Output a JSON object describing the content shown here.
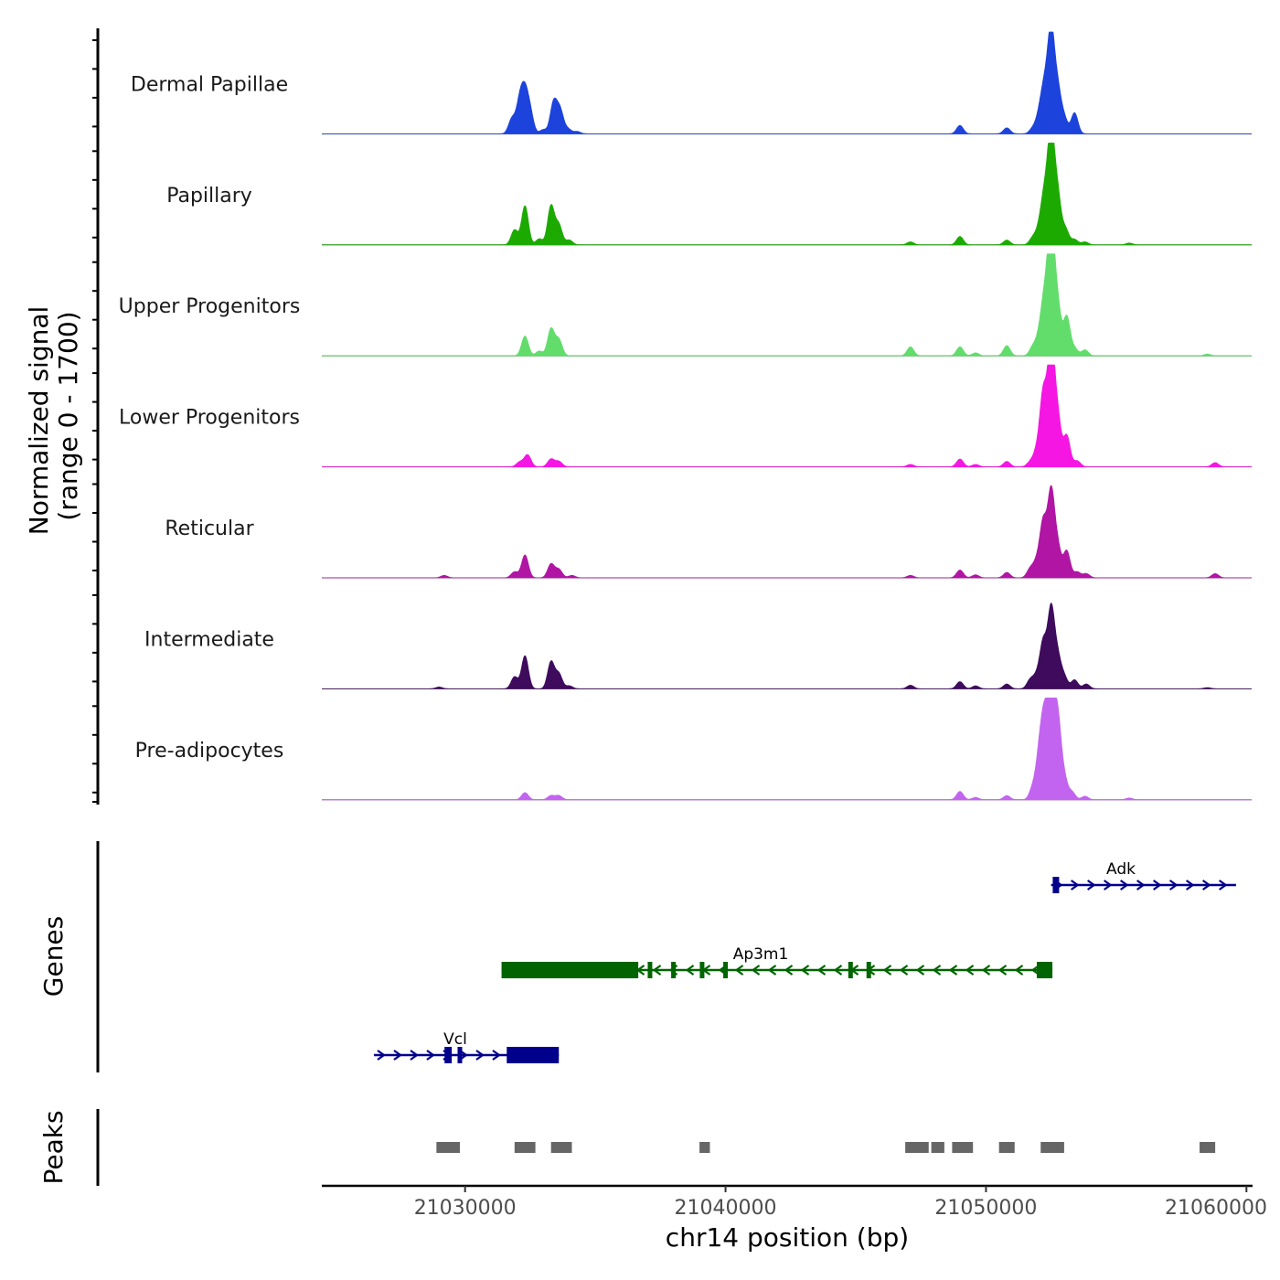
{
  "chart_data": {
    "type": "area",
    "description_kind": "genome coverage tracks",
    "y_title_line1": "Normalized signal",
    "y_title_line2": "(range 0 - 1700)",
    "y_range": [
      0,
      1700
    ],
    "x_title": "chr14 position (bp)",
    "x_range": [
      21024500,
      21060200
    ],
    "x_ticks": [
      21030000,
      21040000,
      21050000,
      21060000
    ],
    "x_tick_labels": [
      "21030000",
      "21040000",
      "21050000",
      "21060000"
    ],
    "tracks": [
      {
        "name": "Dermal Papillae",
        "color": "#1C43DB",
        "peaks": [
          [
            21031800,
            250
          ],
          [
            21032100,
            520
          ],
          [
            21032300,
            600
          ],
          [
            21032500,
            330
          ],
          [
            21033000,
            70
          ],
          [
            21033400,
            520
          ],
          [
            21033650,
            380
          ],
          [
            21033950,
            80
          ],
          [
            21034300,
            40
          ],
          [
            21049000,
            140
          ],
          [
            21050800,
            100
          ],
          [
            21051800,
            90
          ],
          [
            21052050,
            300
          ],
          [
            21052250,
            700
          ],
          [
            21052500,
            1650
          ],
          [
            21052750,
            700
          ],
          [
            21053000,
            260
          ],
          [
            21053400,
            350
          ]
        ]
      },
      {
        "name": "Papillary",
        "color": "#1DAA00",
        "peaks": [
          [
            21031900,
            250
          ],
          [
            21032300,
            650
          ],
          [
            21032850,
            100
          ],
          [
            21033300,
            650
          ],
          [
            21033600,
            330
          ],
          [
            21034000,
            80
          ],
          [
            21047100,
            50
          ],
          [
            21049000,
            140
          ],
          [
            21050800,
            80
          ],
          [
            21051800,
            120
          ],
          [
            21052050,
            250
          ],
          [
            21052250,
            750
          ],
          [
            21052500,
            1800
          ],
          [
            21052750,
            800
          ],
          [
            21053050,
            260
          ],
          [
            21053400,
            90
          ],
          [
            21053800,
            50
          ],
          [
            21055500,
            30
          ]
        ]
      },
      {
        "name": "Upper Progenitors",
        "color": "#62DD6C",
        "peaks": [
          [
            21032300,
            330
          ],
          [
            21032850,
            80
          ],
          [
            21033300,
            450
          ],
          [
            21033600,
            270
          ],
          [
            21047100,
            150
          ],
          [
            21049000,
            150
          ],
          [
            21049600,
            50
          ],
          [
            21050800,
            170
          ],
          [
            21051800,
            150
          ],
          [
            21052050,
            300
          ],
          [
            21052250,
            850
          ],
          [
            21052500,
            2100
          ],
          [
            21052750,
            800
          ],
          [
            21053100,
            650
          ],
          [
            21053400,
            120
          ],
          [
            21053800,
            100
          ],
          [
            21058500,
            30
          ]
        ]
      },
      {
        "name": "Lower Progenitors",
        "color": "#F516E3",
        "peaks": [
          [
            21032100,
            80
          ],
          [
            21032400,
            200
          ],
          [
            21033300,
            130
          ],
          [
            21033600,
            90
          ],
          [
            21047100,
            40
          ],
          [
            21049000,
            130
          ],
          [
            21049600,
            40
          ],
          [
            21050800,
            90
          ],
          [
            21051700,
            80
          ],
          [
            21051950,
            250
          ],
          [
            21052200,
            1200
          ],
          [
            21052500,
            2000
          ],
          [
            21052750,
            800
          ],
          [
            21053100,
            520
          ],
          [
            21053500,
            100
          ],
          [
            21058800,
            70
          ]
        ]
      },
      {
        "name": "Reticular",
        "color": "#B015A4",
        "peaks": [
          [
            21029200,
            40
          ],
          [
            21031900,
            100
          ],
          [
            21032300,
            380
          ],
          [
            21033300,
            230
          ],
          [
            21033600,
            140
          ],
          [
            21034100,
            40
          ],
          [
            21047100,
            40
          ],
          [
            21049000,
            130
          ],
          [
            21049600,
            50
          ],
          [
            21050800,
            90
          ],
          [
            21051700,
            150
          ],
          [
            21051950,
            250
          ],
          [
            21052200,
            900
          ],
          [
            21052500,
            1400
          ],
          [
            21052750,
            500
          ],
          [
            21053100,
            450
          ],
          [
            21053500,
            100
          ],
          [
            21053850,
            70
          ],
          [
            21058800,
            70
          ]
        ]
      },
      {
        "name": "Intermediate",
        "color": "#3E0B5D",
        "peaks": [
          [
            21029000,
            30
          ],
          [
            21031900,
            200
          ],
          [
            21032300,
            550
          ],
          [
            21033300,
            450
          ],
          [
            21033600,
            250
          ],
          [
            21034000,
            50
          ],
          [
            21047100,
            60
          ],
          [
            21049000,
            120
          ],
          [
            21049600,
            50
          ],
          [
            21050800,
            80
          ],
          [
            21051700,
            150
          ],
          [
            21051950,
            200
          ],
          [
            21052200,
            750
          ],
          [
            21052500,
            1300
          ],
          [
            21052750,
            500
          ],
          [
            21053000,
            200
          ],
          [
            21053400,
            150
          ],
          [
            21053850,
            80
          ],
          [
            21058500,
            20
          ]
        ]
      },
      {
        "name": "Pre-adipocytes",
        "color": "#C364F0",
        "peaks": [
          [
            21032300,
            120
          ],
          [
            21033300,
            70
          ],
          [
            21033600,
            70
          ],
          [
            21049000,
            140
          ],
          [
            21049600,
            40
          ],
          [
            21050800,
            70
          ],
          [
            21051800,
            200
          ],
          [
            21052050,
            700
          ],
          [
            21052250,
            1200
          ],
          [
            21052500,
            1600
          ],
          [
            21052750,
            1300
          ],
          [
            21053000,
            350
          ],
          [
            21053300,
            130
          ],
          [
            21053800,
            60
          ],
          [
            21055500,
            30
          ]
        ]
      }
    ],
    "genes": [
      {
        "name": "Adk",
        "strand": "+",
        "color": "#00008B",
        "start": 21052500,
        "end": 21059600,
        "cds": [],
        "exons": [
          21052650,
          21052720
        ]
      },
      {
        "name": "Ap3m1",
        "strand": "-",
        "color": "#006400",
        "start": 21031400,
        "end": 21052550,
        "cds": [
          [
            21031400,
            21036650
          ],
          [
            21051950,
            21052550
          ]
        ],
        "exons": [
          21037100,
          21038000,
          21039100,
          21040000,
          21044800,
          21045500
        ]
      },
      {
        "name": "Vcl",
        "strand": "+",
        "color": "#00008B",
        "start": 21026500,
        "end": 21033600,
        "cds": [
          [
            21031600,
            21033600
          ]
        ],
        "exons": [
          21029300,
          21029400,
          21029800
        ]
      }
    ],
    "peaks_track_label": "Peaks",
    "genes_track_label": "Genes",
    "peak_regions": [
      [
        21028900,
        21029800
      ],
      [
        21031900,
        21032700
      ],
      [
        21033300,
        21034100
      ],
      [
        21039000,
        21039400
      ],
      [
        21046900,
        21047800
      ],
      [
        21047900,
        21048400
      ],
      [
        21048700,
        21049500
      ],
      [
        21050500,
        21051100
      ],
      [
        21052100,
        21053000
      ],
      [
        21058200,
        21058800
      ]
    ],
    "peak_color": "#666666"
  }
}
